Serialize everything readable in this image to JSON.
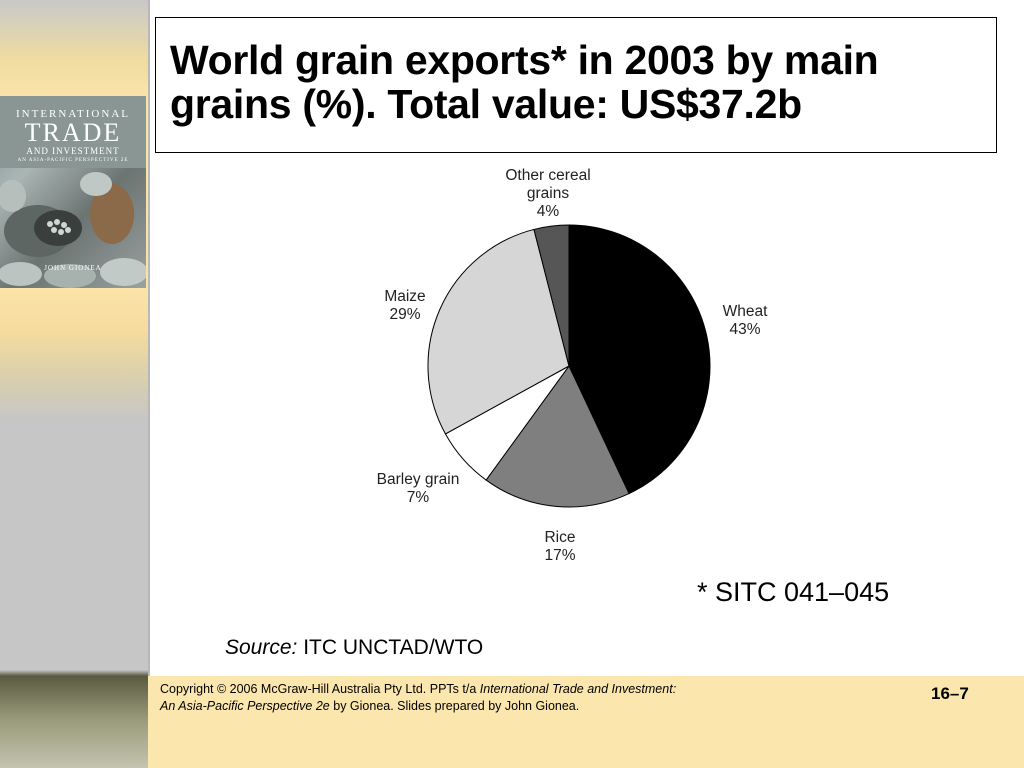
{
  "slide": {
    "title": "World grain exports* in 2003 by main grains (%). Total value: US$37.2b",
    "footnote": "* SITC 041–045",
    "source_label": "Source:",
    "source_text": "ITC UNCTAD/WTO"
  },
  "book_cover": {
    "line1": "INTERNATIONAL",
    "line2": "TRADE",
    "line3": "AND INVESTMENT",
    "line4": "AN ASIA-PACIFIC PERSPECTIVE 2E",
    "author": "JOHN GIONEA"
  },
  "footer": {
    "copyright_prefix": "Copyright © 2006 McGraw-Hill Australia Pty Ltd. PPTs t/a ",
    "book_title_1": "International Trade and Investment:",
    "book_title_2": "An Asia-Pacific Perspective 2e",
    "copyright_suffix": " by Gionea. Slides prepared by John Gionea.",
    "slide_number": "16–7"
  },
  "chart_data": {
    "type": "pie",
    "title": "World grain exports* in 2003 by main grains (%). Total value: US$37.2b",
    "slices": [
      {
        "label": "Wheat",
        "value": 43,
        "value_label": "43%",
        "color": "#000000"
      },
      {
        "label": "Rice",
        "value": 17,
        "value_label": "17%",
        "color": "#7f7f7f"
      },
      {
        "label": "Barley grain",
        "value": 7,
        "value_label": "7%",
        "color": "#ffffff"
      },
      {
        "label": "Maize",
        "value": 29,
        "value_label": "29%",
        "color": "#d6d6d6"
      },
      {
        "label": "Other cereal grains",
        "value": 4,
        "value_label": "4%",
        "color": "#565656"
      }
    ]
  }
}
